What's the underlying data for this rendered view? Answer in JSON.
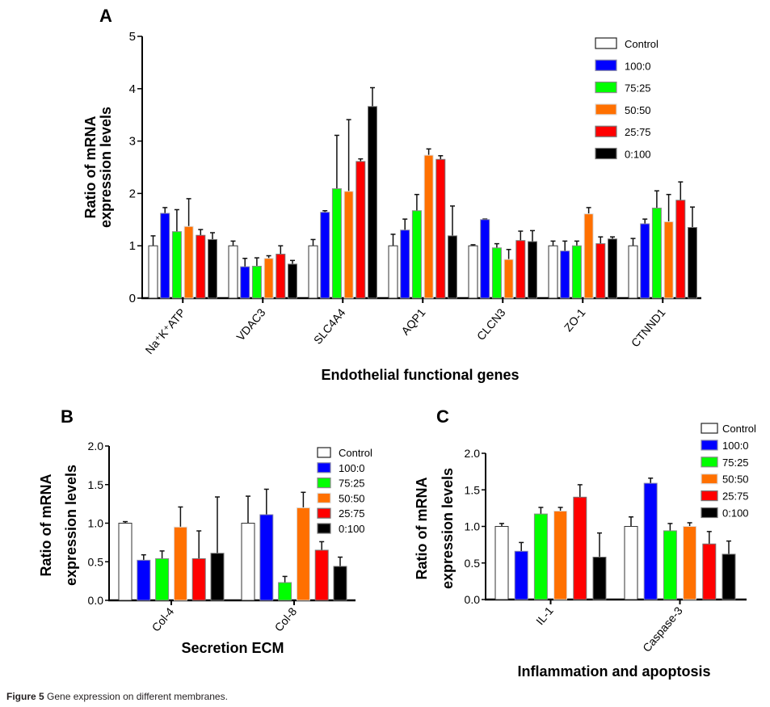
{
  "figure": {
    "caption_label": "Figure 5",
    "caption_text": " Gene expression on different membranes."
  },
  "legend": [
    {
      "name": "Control",
      "color": "#ffffff"
    },
    {
      "name": "100:0",
      "color": "#0000ff"
    },
    {
      "name": "75:25",
      "color": "#00ff00"
    },
    {
      "name": "50:50",
      "color": "#ff7000"
    },
    {
      "name": "25:75",
      "color": "#ff0000"
    },
    {
      "name": "0:100",
      "color": "#000000"
    }
  ],
  "chart_data": [
    {
      "panel": "A",
      "type": "bar",
      "title": "",
      "xlabel": "Endothelial functional genes",
      "ylabel": "Ratio of mRNA expression levels",
      "ylim": [
        0,
        5
      ],
      "yticks": [
        "0",
        "1",
        "2",
        "3",
        "4",
        "5"
      ],
      "legend_position": "top-right",
      "categories": [
        "Na⁺K⁺ATP",
        "VDAC3",
        "SLC4A4",
        "AQP1",
        "CLCN3",
        "ZO-1",
        "CTNND1"
      ],
      "series": [
        {
          "name": "Control",
          "values": [
            1.0,
            1.0,
            1.0,
            1.0,
            1.0,
            1.0,
            1.0
          ],
          "error_upper": [
            1.19,
            1.09,
            1.12,
            1.22,
            1.02,
            1.09,
            1.14
          ]
        },
        {
          "name": "100:0",
          "values": [
            1.62,
            0.6,
            1.64,
            1.3,
            1.5,
            0.9,
            1.42
          ],
          "error_upper": [
            1.73,
            0.76,
            1.67,
            1.51,
            1.51,
            1.09,
            1.51
          ]
        },
        {
          "name": "75:25",
          "values": [
            1.27,
            0.61,
            2.09,
            1.67,
            0.96,
            1.0,
            1.72
          ],
          "error_upper": [
            1.69,
            0.77,
            3.11,
            1.98,
            1.04,
            1.09,
            2.05
          ]
        },
        {
          "name": "50:50",
          "values": [
            1.37,
            0.76,
            2.04,
            2.73,
            0.74,
            1.61,
            1.46
          ],
          "error_upper": [
            1.9,
            0.81,
            3.41,
            2.85,
            0.93,
            1.73,
            1.98
          ]
        },
        {
          "name": "25:75",
          "values": [
            1.2,
            0.84,
            2.61,
            2.65,
            1.1,
            1.04,
            1.87
          ],
          "error_upper": [
            1.31,
            1.0,
            2.66,
            2.72,
            1.28,
            1.17,
            2.22
          ]
        },
        {
          "name": "0:100",
          "values": [
            1.12,
            0.65,
            3.66,
            1.19,
            1.08,
            1.13,
            1.35
          ],
          "error_upper": [
            1.25,
            0.72,
            4.02,
            1.76,
            1.29,
            1.17,
            1.74
          ]
        }
      ]
    },
    {
      "panel": "B",
      "type": "bar",
      "title": "",
      "xlabel": "Secretion ECM",
      "ylabel": "Ratio of mRNA expression levels",
      "ylim": [
        0,
        2
      ],
      "yticks": [
        "0.0",
        "0.5",
        "1.0",
        "1.5",
        "2.0"
      ],
      "legend_position": "top-right",
      "categories": [
        "Col-4",
        "Col-8"
      ],
      "series": [
        {
          "name": "Control",
          "values": [
            1.0,
            1.0
          ],
          "error_upper": [
            1.02,
            1.35
          ]
        },
        {
          "name": "100:0",
          "values": [
            0.52,
            1.11
          ],
          "error_upper": [
            0.59,
            1.44
          ]
        },
        {
          "name": "75:25",
          "values": [
            0.54,
            0.23
          ],
          "error_upper": [
            0.64,
            0.31
          ]
        },
        {
          "name": "50:50",
          "values": [
            0.95,
            1.2
          ],
          "error_upper": [
            1.21,
            1.4
          ]
        },
        {
          "name": "25:75",
          "values": [
            0.54,
            0.65
          ],
          "error_upper": [
            0.9,
            0.76
          ]
        },
        {
          "name": "0:100",
          "values": [
            0.61,
            0.44
          ],
          "error_upper": [
            1.34,
            0.56
          ]
        }
      ]
    },
    {
      "panel": "C",
      "type": "bar",
      "title": "",
      "xlabel": "Inflammation and apoptosis",
      "ylabel": "Ratio of mRNA expression levels",
      "ylim": [
        0,
        2
      ],
      "yticks": [
        "0.0",
        "0.5",
        "1.0",
        "1.5",
        "2.0"
      ],
      "legend_position": "top-right",
      "categories": [
        "IL-1",
        "Caspase-3"
      ],
      "series": [
        {
          "name": "Control",
          "values": [
            1.0,
            1.0
          ],
          "error_upper": [
            1.04,
            1.13
          ]
        },
        {
          "name": "100:0",
          "values": [
            0.66,
            1.59
          ],
          "error_upper": [
            0.78,
            1.66
          ]
        },
        {
          "name": "75:25",
          "values": [
            1.17,
            0.94
          ],
          "error_upper": [
            1.26,
            1.04
          ]
        },
        {
          "name": "50:50",
          "values": [
            1.21,
            1.0
          ],
          "error_upper": [
            1.26,
            1.05
          ]
        },
        {
          "name": "25:75",
          "values": [
            1.4,
            0.76
          ],
          "error_upper": [
            1.57,
            0.93
          ]
        },
        {
          "name": "0:100",
          "values": [
            0.58,
            0.62
          ],
          "error_upper": [
            0.91,
            0.8
          ]
        }
      ]
    }
  ]
}
